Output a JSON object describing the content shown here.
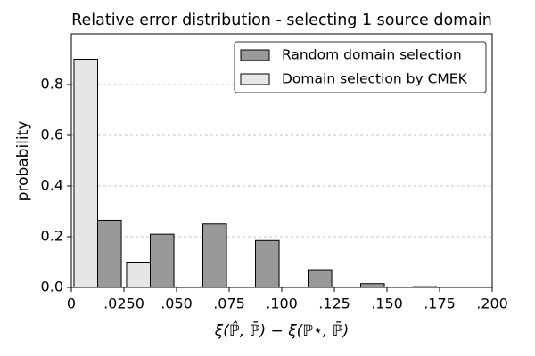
{
  "chart_data": {
    "type": "histogram",
    "title": "Relative error distribution - selecting 1 source domain",
    "x_label": "ξ(ℙ̂, ℙ̄) − ξ(ℙ⋆, ℙ̄)",
    "y_label": "probability",
    "bins": [
      0,
      0.025,
      0.05,
      0.075,
      0.1,
      0.125,
      0.15,
      0.175,
      0.2
    ],
    "series": [
      {
        "name": "Random domain selection",
        "color": "#999999",
        "values": [
          0.265,
          0.21,
          0.25,
          0.185,
          0.07,
          0.015,
          0.003,
          0
        ]
      },
      {
        "name": "Domain selection by CMEK",
        "color": "#e6e6e6",
        "values": [
          0.9,
          0.1,
          0,
          0,
          0,
          0,
          0,
          0
        ]
      }
    ],
    "xlim": [
      0,
      0.2
    ],
    "xticks": [
      0,
      {
        "value": 0.025,
        "label": ".0250"
      },
      {
        "value": 0.05,
        "label": ".050"
      },
      {
        "value": 0.075,
        "label": ".075"
      },
      {
        "value": 0.1,
        "label": ".100"
      },
      {
        "value": 0.125,
        "label": ".125"
      },
      {
        "value": 0.15,
        "label": ".150"
      },
      {
        "value": 0.175,
        "label": ".175"
      },
      {
        "value": 0.2,
        "label": ".200"
      }
    ],
    "ylim": [
      0,
      1
    ],
    "yticks": [
      {
        "value": 0,
        "label": "0.0"
      },
      0.2,
      0.4,
      0.6,
      0.8
    ],
    "grid": true,
    "legend": "upper right"
  }
}
